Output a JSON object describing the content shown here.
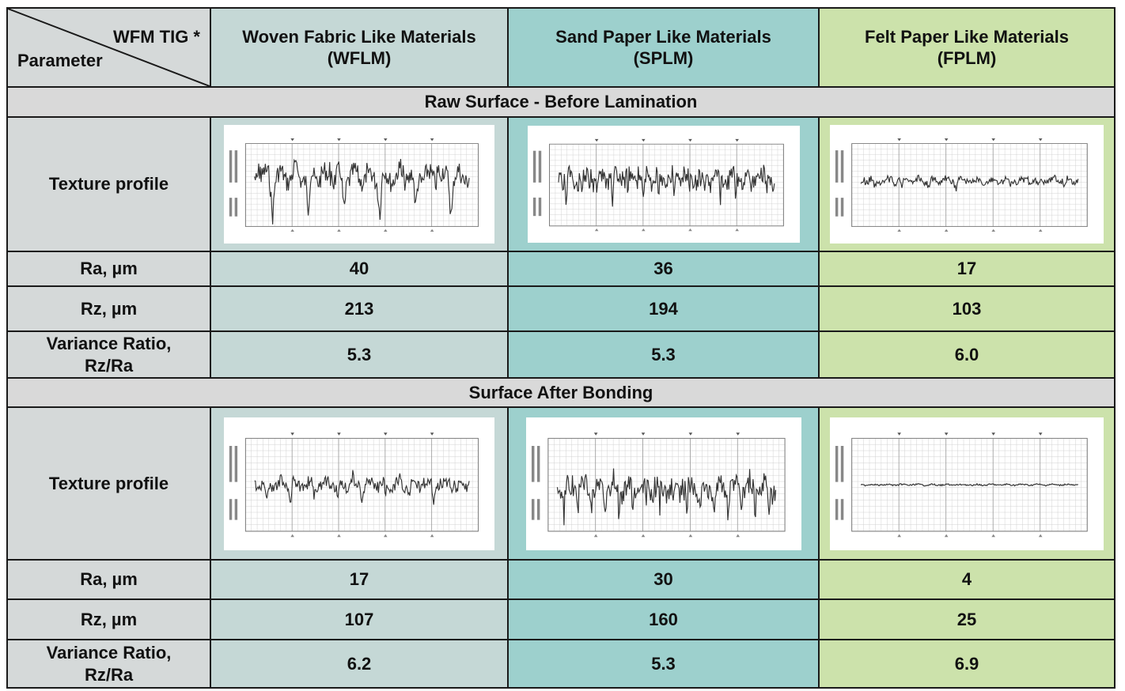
{
  "header": {
    "corner_top": "WFM TIG *",
    "corner_bottom": "Parameter",
    "columns": [
      {
        "line1": "Woven Fabric Like Materials",
        "line2": "(WFLM)"
      },
      {
        "line1": "Sand Paper Like Materials",
        "line2": "(SPLM)"
      },
      {
        "line1": "Felt Paper Like Materials",
        "line2": "(FPLM)"
      }
    ]
  },
  "sections": [
    {
      "title": "Raw Surface - Before Lamination",
      "profile_label": "Texture profile",
      "rows": [
        {
          "label": "Ra, µm",
          "values": [
            "40",
            "36",
            "17"
          ]
        },
        {
          "label": "Rz, µm",
          "values": [
            "213",
            "194",
            "103"
          ]
        },
        {
          "label1": "Variance  Ratio,",
          "label2": "Rz/Ra",
          "values": [
            "5.3",
            "5.3",
            "6.0"
          ]
        }
      ]
    },
    {
      "title": "Surface After Bonding",
      "profile_label": "Texture profile",
      "rows": [
        {
          "label": "Ra, µm",
          "values": [
            "17",
            "30",
            "4"
          ]
        },
        {
          "label": "Rz, µm",
          "values": [
            "107",
            "160",
            "25"
          ]
        },
        {
          "label1": "Variance  Ratio,",
          "label2": "Rz/Ra",
          "values": [
            "6.2",
            "5.3",
            "6.9"
          ]
        }
      ]
    }
  ],
  "colors": {
    "param_col": "#d5d9d9",
    "wflm_col": "#c5d8d6",
    "splm_col": "#9dd0cd",
    "fplm_col": "#cce2ab",
    "section_band": "#d9d9d9"
  }
}
